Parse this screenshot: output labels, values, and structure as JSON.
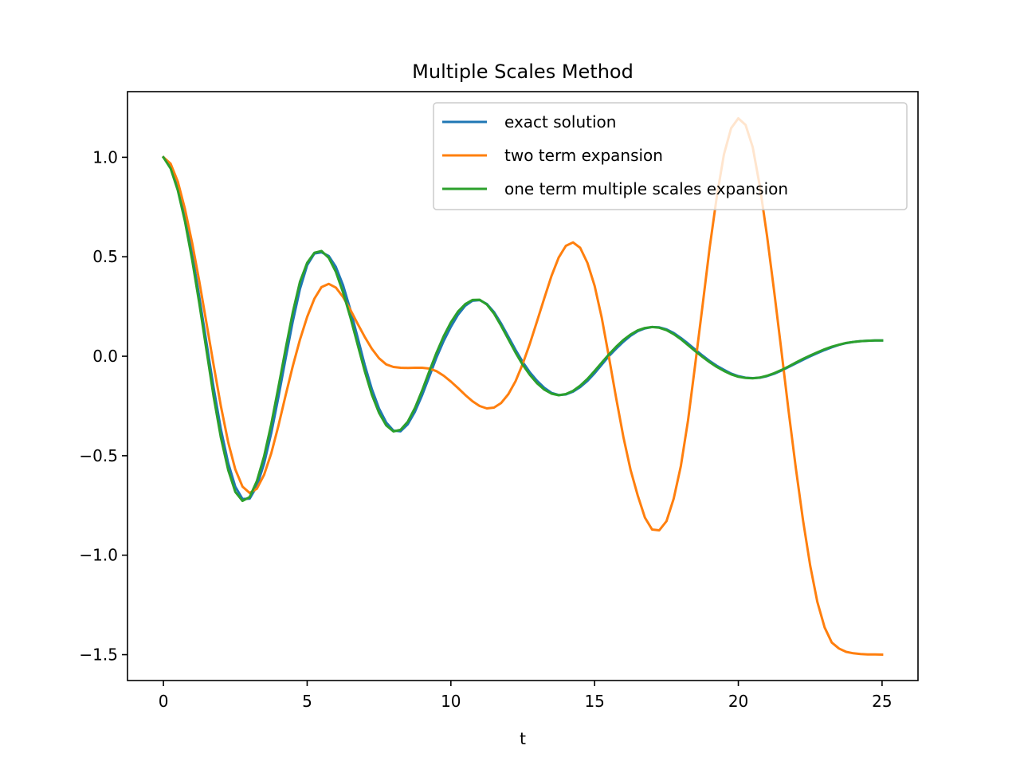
{
  "chart_data": {
    "type": "line",
    "title": "Multiple Scales Method",
    "xlabel": "t",
    "ylabel": "",
    "xlim": [
      -1.25,
      26.25
    ],
    "ylim": [
      -1.63,
      1.33
    ],
    "xticks": [
      0,
      5,
      10,
      15,
      20,
      25
    ],
    "xtick_labels": [
      "0",
      "5",
      "10",
      "15",
      "20",
      "25"
    ],
    "yticks": [
      -1.5,
      -1.0,
      -0.5,
      0.0,
      0.5,
      1.0
    ],
    "ytick_labels": [
      "−1.5",
      "−1.0",
      "−0.5",
      "0.0",
      "0.5",
      "1.0"
    ],
    "grid": false,
    "legend_position": "top-right",
    "x": [
      0,
      0.25,
      0.5,
      0.75,
      1,
      1.25,
      1.5,
      1.75,
      2,
      2.25,
      2.5,
      2.75,
      3,
      3.25,
      3.5,
      3.75,
      4,
      4.25,
      4.5,
      4.75,
      5,
      5.25,
      5.5,
      5.75,
      6,
      6.25,
      6.5,
      6.75,
      7,
      7.25,
      7.5,
      7.75,
      8,
      8.25,
      8.5,
      8.75,
      9,
      9.25,
      9.5,
      9.75,
      10,
      10.25,
      10.5,
      10.75,
      11,
      11.25,
      11.5,
      11.75,
      12,
      12.25,
      12.5,
      12.75,
      13,
      13.25,
      13.5,
      13.75,
      14,
      14.25,
      14.5,
      14.75,
      15,
      15.25,
      15.5,
      15.75,
      16,
      16.25,
      16.5,
      16.75,
      17,
      17.25,
      17.5,
      17.75,
      18,
      18.25,
      18.5,
      18.75,
      19,
      19.25,
      19.5,
      19.75,
      20,
      20.25,
      20.5,
      20.75,
      21,
      21.25,
      21.5,
      21.75,
      22,
      22.25,
      22.5,
      22.75,
      23,
      23.25,
      23.5,
      23.75,
      24,
      24.25,
      24.5,
      24.75,
      25
    ],
    "series": [
      {
        "name": "exact solution",
        "color": "#1f77b4",
        "values": [
          1.0,
          0.953,
          0.852,
          0.702,
          0.513,
          0.296,
          0.066,
          -0.161,
          -0.367,
          -0.536,
          -0.656,
          -0.717,
          -0.716,
          -0.654,
          -0.541,
          -0.386,
          -0.205,
          -0.012,
          0.175,
          0.338,
          0.458,
          0.516,
          0.522,
          0.504,
          0.449,
          0.357,
          0.235,
          0.097,
          -0.042,
          -0.165,
          -0.262,
          -0.333,
          -0.374,
          -0.377,
          -0.342,
          -0.279,
          -0.196,
          -0.101,
          -0.006,
          0.077,
          0.148,
          0.209,
          0.254,
          0.279,
          0.282,
          0.263,
          0.222,
          0.164,
          0.098,
          0.032,
          -0.029,
          -0.081,
          -0.124,
          -0.159,
          -0.184,
          -0.195,
          -0.192,
          -0.178,
          -0.155,
          -0.124,
          -0.085,
          -0.042,
          0.001,
          0.038,
          0.073,
          0.103,
          0.126,
          0.14,
          0.147,
          0.145,
          0.135,
          0.117,
          0.092,
          0.064,
          0.034,
          0.004,
          -0.024,
          -0.048,
          -0.068,
          -0.087,
          -0.1,
          -0.108,
          -0.11,
          -0.108,
          -0.1,
          -0.088,
          -0.072,
          -0.054,
          -0.036,
          -0.018,
          0.0,
          0.016,
          0.031,
          0.045,
          0.057,
          0.066,
          0.072,
          0.076,
          0.078,
          0.079,
          0.079
        ]
      },
      {
        "name": "two term expansion",
        "color": "#ff7f0e",
        "values": [
          1.0,
          0.968,
          0.878,
          0.74,
          0.568,
          0.374,
          0.165,
          -0.047,
          -0.251,
          -0.431,
          -0.569,
          -0.655,
          -0.687,
          -0.666,
          -0.597,
          -0.488,
          -0.349,
          -0.197,
          -0.05,
          0.083,
          0.198,
          0.289,
          0.348,
          0.364,
          0.345,
          0.298,
          0.234,
          0.165,
          0.098,
          0.038,
          -0.01,
          -0.041,
          -0.054,
          -0.058,
          -0.059,
          -0.058,
          -0.058,
          -0.062,
          -0.075,
          -0.098,
          -0.127,
          -0.16,
          -0.195,
          -0.226,
          -0.25,
          -0.262,
          -0.258,
          -0.235,
          -0.19,
          -0.125,
          -0.038,
          0.064,
          0.177,
          0.292,
          0.404,
          0.496,
          0.555,
          0.572,
          0.545,
          0.469,
          0.354,
          0.192,
          -0.005,
          -0.21,
          -0.406,
          -0.571,
          -0.7,
          -0.811,
          -0.871,
          -0.875,
          -0.829,
          -0.716,
          -0.552,
          -0.323,
          -0.042,
          0.25,
          0.544,
          0.802,
          1.015,
          1.146,
          1.196,
          1.163,
          1.051,
          0.853,
          0.604,
          0.323,
          0.024,
          -0.278,
          -0.562,
          -0.824,
          -1.052,
          -1.235,
          -1.363,
          -1.439,
          -1.469,
          -1.486,
          -1.493,
          -1.497,
          -1.499,
          -1.499,
          -1.5
        ]
      },
      {
        "name": "one term multiple scales expansion",
        "color": "#2ca02c",
        "values": [
          1.0,
          0.944,
          0.834,
          0.678,
          0.483,
          0.263,
          0.028,
          -0.206,
          -0.409,
          -0.571,
          -0.682,
          -0.727,
          -0.708,
          -0.628,
          -0.504,
          -0.341,
          -0.155,
          0.037,
          0.221,
          0.374,
          0.47,
          0.52,
          0.529,
          0.495,
          0.424,
          0.321,
          0.197,
          0.061,
          -0.073,
          -0.193,
          -0.284,
          -0.348,
          -0.378,
          -0.37,
          -0.329,
          -0.26,
          -0.172,
          -0.075,
          0.018,
          0.101,
          0.17,
          0.225,
          0.262,
          0.283,
          0.284,
          0.26,
          0.215,
          0.153,
          0.085,
          0.018,
          -0.043,
          -0.094,
          -0.136,
          -0.168,
          -0.188,
          -0.196,
          -0.19,
          -0.174,
          -0.148,
          -0.114,
          -0.074,
          -0.032,
          0.01,
          0.048,
          0.082,
          0.109,
          0.13,
          0.142,
          0.147,
          0.143,
          0.131,
          0.111,
          0.086,
          0.056,
          0.026,
          -0.003,
          -0.03,
          -0.054,
          -0.074,
          -0.091,
          -0.103,
          -0.109,
          -0.111,
          -0.107,
          -0.098,
          -0.085,
          -0.069,
          -0.051,
          -0.032,
          -0.013,
          0.004,
          0.02,
          0.035,
          0.048,
          0.058,
          0.067,
          0.072,
          0.076,
          0.078,
          0.079,
          0.079
        ]
      }
    ]
  }
}
